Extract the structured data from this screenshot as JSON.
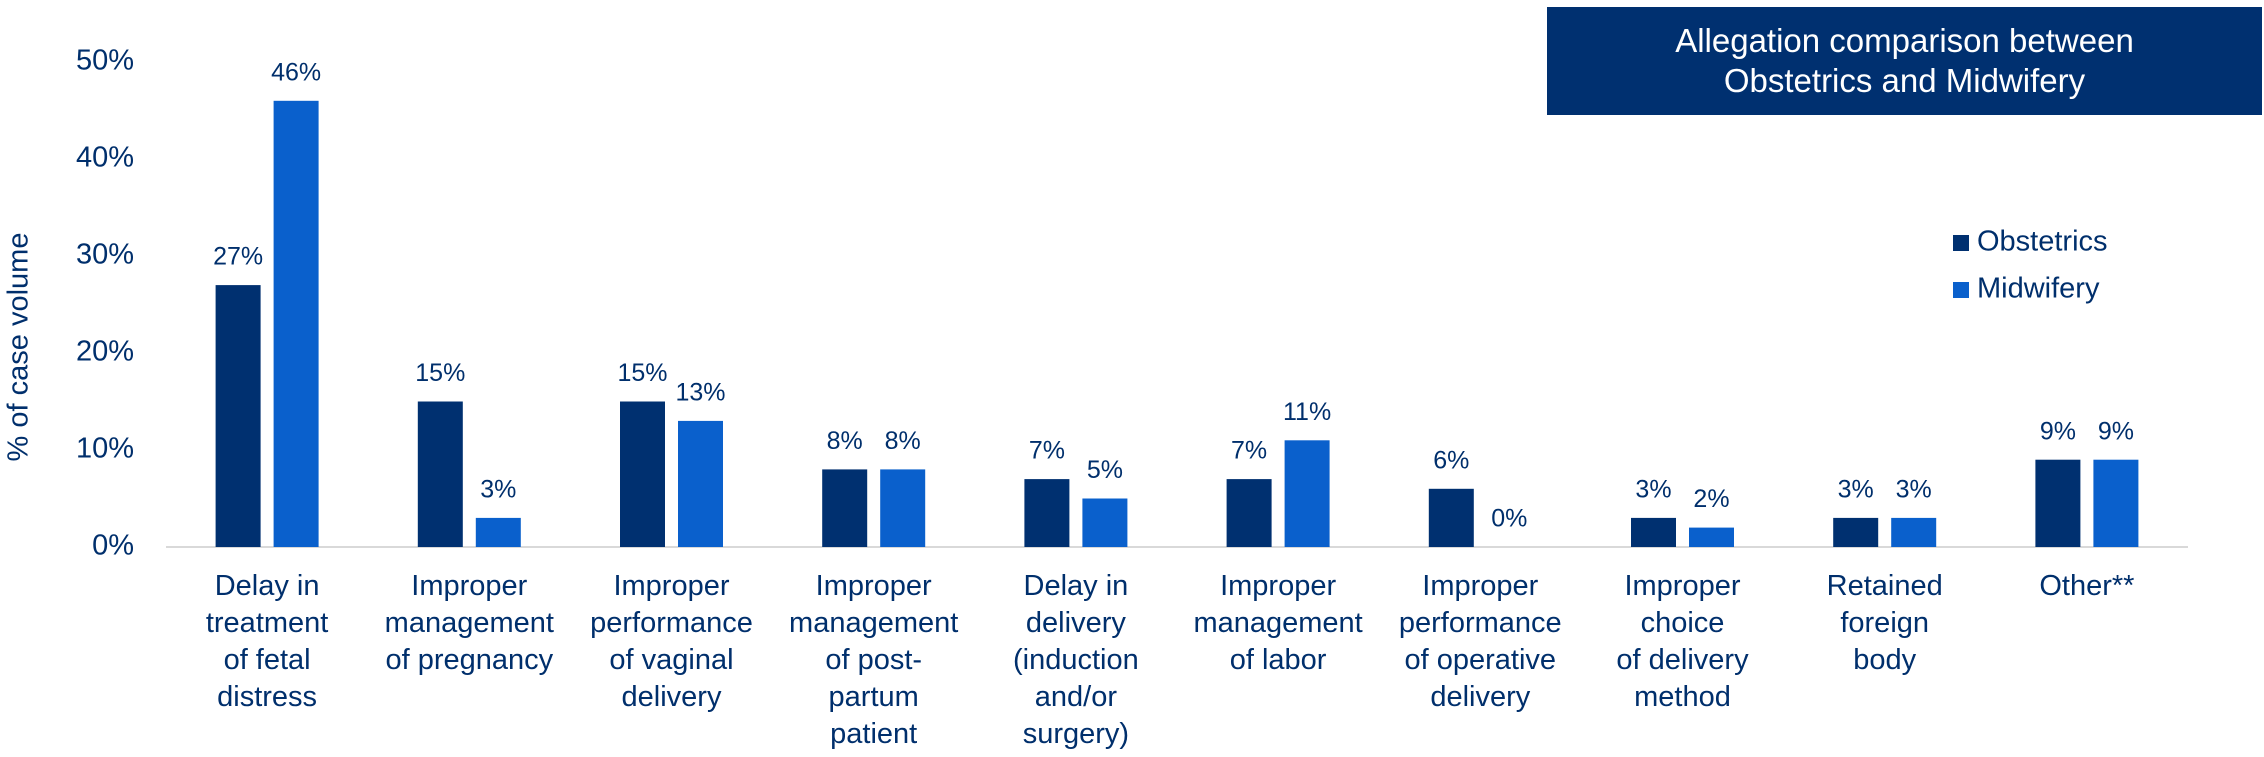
{
  "chart_data": {
    "type": "bar",
    "title": "Allegation comparison between\nObstetrics and Midwifery",
    "y_label": "% of case volume",
    "categories": [
      "Delay in\ntreatment\nof fetal\ndistress",
      "Improper\nmanagement\nof pregnancy",
      "Improper\nperformance\nof vaginal\ndelivery",
      "Improper\nmanagement\nof post-\npartum\npatient",
      "Delay in\ndelivery\n(induction\nand/or\nsurgery)",
      "Improper\nmanagement\nof labor",
      "Improper\nperformance\nof operative\ndelivery",
      "Improper\nchoice\nof delivery\nmethod",
      "Retained\nforeign\nbody",
      "Other**"
    ],
    "series": [
      {
        "name": "Obstetrics",
        "color": "#003070",
        "values": [
          27,
          15,
          15,
          8,
          7,
          7,
          6,
          3,
          3,
          9
        ],
        "value_labels": [
          "27%",
          "15%",
          "15%",
          "8%",
          "7%",
          "7%",
          "6%",
          "3%",
          "3%",
          "9%"
        ]
      },
      {
        "name": "Midwifery",
        "color": "#0a60cc",
        "values": [
          46,
          3,
          13,
          8,
          5,
          11,
          0,
          2,
          3,
          9
        ],
        "value_labels": [
          "46%",
          "3%",
          "13%",
          "8%",
          "5%",
          "11%",
          "0%",
          "2%",
          "3%",
          "9%"
        ]
      }
    ],
    "ylim": [
      0,
      50
    ],
    "yticks": [
      {
        "value": 0,
        "label": "0%"
      },
      {
        "value": 10,
        "label": "10%"
      },
      {
        "value": 20,
        "label": "20%"
      },
      {
        "value": 30,
        "label": "30%"
      },
      {
        "value": 40,
        "label": "40%"
      },
      {
        "value": 50,
        "label": "50%"
      }
    ],
    "grid": false,
    "legend": "right"
  }
}
